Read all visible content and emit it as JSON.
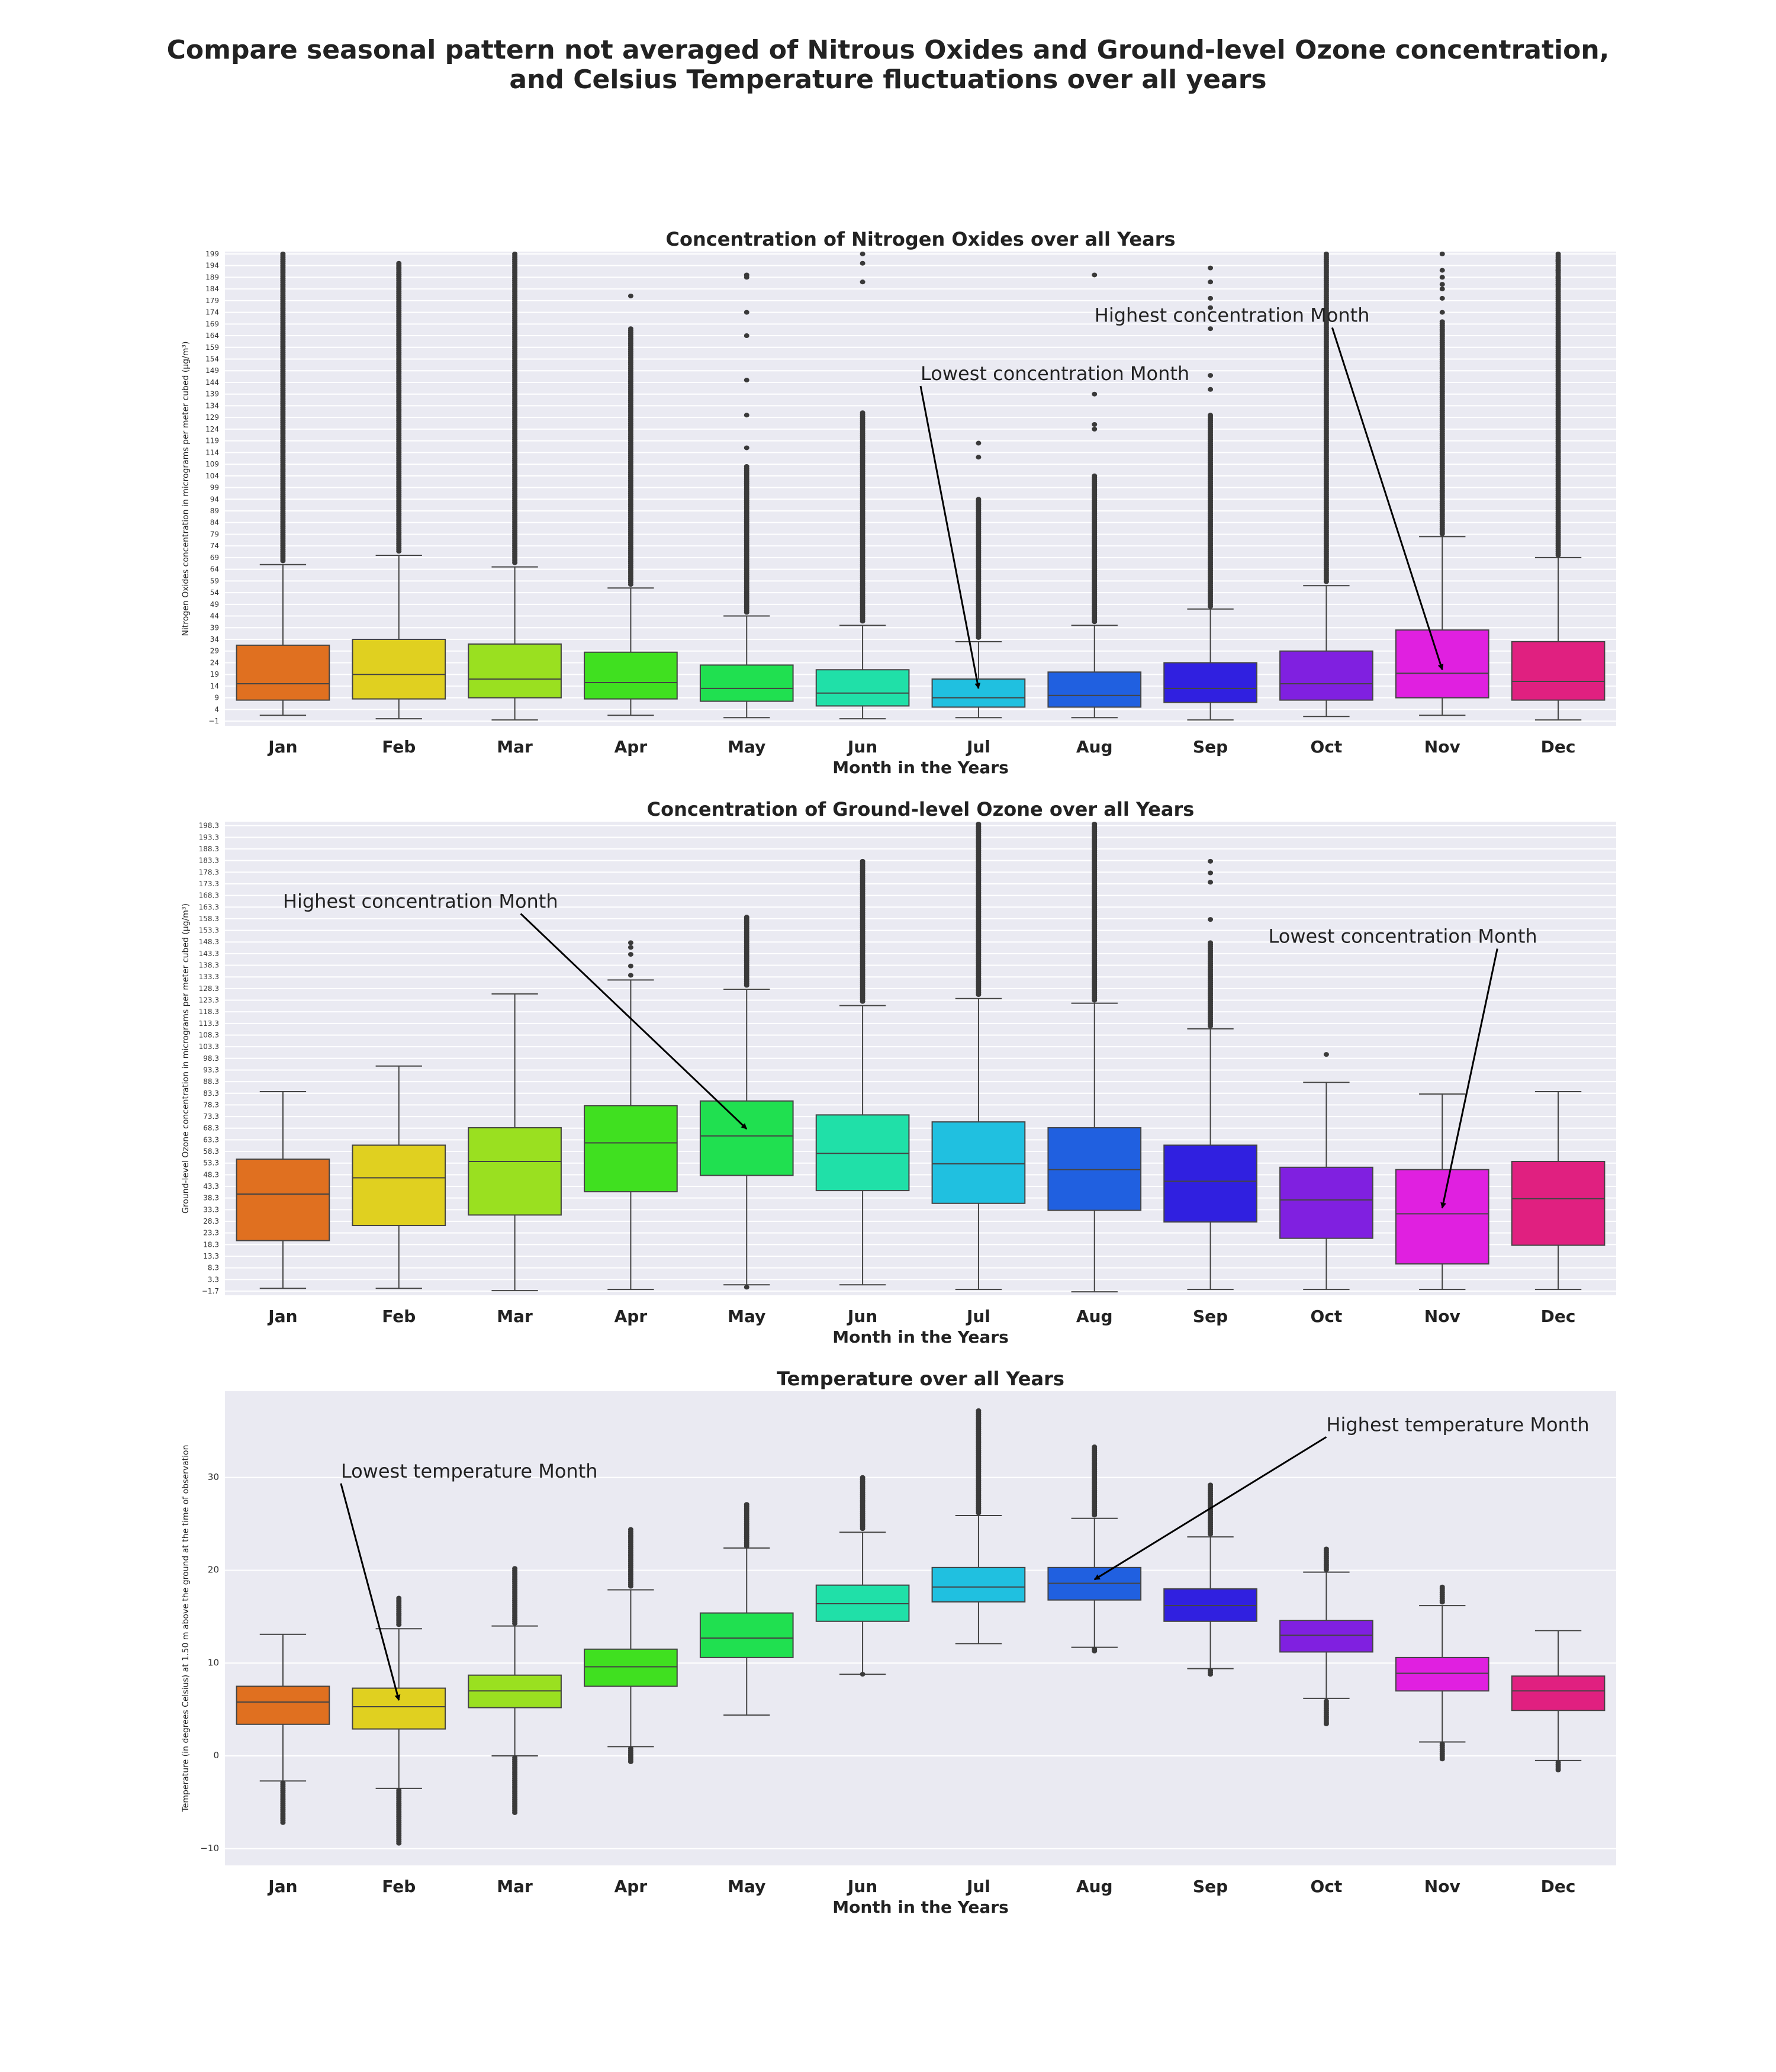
{
  "figure": {
    "title_line1": "Compare seasonal pattern not averaged of Nitrous Oxides and Ground-level Ozone concentration,",
    "title_line2": "and Celsius Temperature fluctuations over all years"
  },
  "colors": [
    "#e07020",
    "#e0d020",
    "#9ae020",
    "#40e020",
    "#20e050",
    "#20e0a8",
    "#20c0e0",
    "#2060e0",
    "#3020e0",
    "#8020e0",
    "#e020e0",
    "#e02080"
  ],
  "chart_data": [
    {
      "type": "box",
      "title": "Concentration of Nitrogen Oxides over all Years",
      "xlabel": "Month in the Years",
      "ylabel": "Nitrogen Oxides concentration in micrograms per meter cubed (µg/m³)",
      "categories": [
        "Jan",
        "Feb",
        "Mar",
        "Apr",
        "May",
        "Jun",
        "Jul",
        "Aug",
        "Sep",
        "Oct",
        "Nov",
        "Dec"
      ],
      "ylim": [
        -3,
        200
      ],
      "yticks": [
        -1,
        4,
        9,
        14,
        19,
        24,
        29,
        34,
        39,
        44,
        49,
        54,
        59,
        64,
        69,
        74,
        79,
        84,
        89,
        94,
        99,
        104,
        109,
        114,
        119,
        124,
        129,
        134,
        139,
        144,
        149,
        154,
        159,
        164,
        169,
        174,
        179,
        184,
        189,
        194,
        199
      ],
      "ytick_labels": [
        "−1",
        "4",
        "9",
        "14",
        "19",
        "24",
        "29",
        "34",
        "39",
        "44",
        "49",
        "54",
        "59",
        "64",
        "69",
        "74",
        "79",
        "84",
        "89",
        "94",
        "99",
        "104",
        "109",
        "114",
        "119",
        "124",
        "129",
        "134",
        "139",
        "144",
        "149",
        "154",
        "159",
        "164",
        "169",
        "174",
        "179",
        "184",
        "189",
        "194",
        "199"
      ],
      "boxes": [
        {
          "whislo": 1.5,
          "q1": 8,
          "med": 15,
          "q3": 31.5,
          "whishi": 66,
          "fliers_from": 67,
          "fliers_to": 200
        },
        {
          "whislo": 0,
          "q1": 8.5,
          "med": 19,
          "q3": 34,
          "whishi": 70,
          "fliers_from": 71,
          "fliers_to": 195
        },
        {
          "whislo": -0.5,
          "q1": 9,
          "med": 17,
          "q3": 32,
          "whishi": 65,
          "fliers_from": 66,
          "fliers_to": 200
        },
        {
          "whislo": 1.5,
          "q1": 8.5,
          "med": 15.5,
          "q3": 28.5,
          "whishi": 56,
          "fliers_from": 57,
          "fliers_to": 167
        },
        {
          "whislo": 0.5,
          "q1": 7.5,
          "med": 13,
          "q3": 23,
          "whishi": 44,
          "fliers_from": 45,
          "fliers_to": 108
        },
        {
          "whislo": 0,
          "q1": 5.5,
          "med": 11,
          "q3": 21,
          "whishi": 40,
          "fliers_from": 41,
          "fliers_to": 131
        },
        {
          "whislo": 0.5,
          "q1": 5,
          "med": 9,
          "q3": 17,
          "whishi": 33,
          "fliers_from": 34,
          "fliers_to": 94
        },
        {
          "whislo": 0.5,
          "q1": 5,
          "med": 10,
          "q3": 20,
          "whishi": 40,
          "fliers_from": 41,
          "fliers_to": 104
        },
        {
          "whislo": -0.5,
          "q1": 7,
          "med": 13,
          "q3": 24,
          "whishi": 47,
          "fliers_from": 48,
          "fliers_to": 130
        },
        {
          "whislo": 1,
          "q1": 8,
          "med": 15,
          "q3": 29,
          "whishi": 57,
          "fliers_from": 58,
          "fliers_to": 200
        },
        {
          "whislo": 1.5,
          "q1": 9,
          "med": 19.5,
          "q3": 38,
          "whishi": 78,
          "fliers_from": 79,
          "fliers_to": 170
        },
        {
          "whislo": -0.5,
          "q1": 8,
          "med": 16,
          "q3": 33,
          "whishi": 69,
          "fliers_from": 70,
          "fliers_to": 200
        }
      ],
      "extra_outliers": [
        {
          "cat": 1,
          "values": [
            190
          ]
        },
        {
          "cat": 3,
          "values": [
            181
          ]
        },
        {
          "cat": 4,
          "values": [
            116,
            130,
            145,
            164,
            174,
            189,
            190
          ]
        },
        {
          "cat": 5,
          "values": [
            187,
            195,
            199
          ]
        },
        {
          "cat": 6,
          "values": [
            112,
            118
          ]
        },
        {
          "cat": 7,
          "values": [
            124,
            126,
            139,
            190
          ]
        },
        {
          "cat": 8,
          "values": [
            141,
            147,
            167,
            176,
            180,
            187,
            193
          ]
        },
        {
          "cat": 10,
          "values": [
            174,
            180,
            184,
            186,
            189,
            192,
            199
          ]
        },
        {
          "cat": 11,
          "values": [
            186,
            189,
            192,
            196,
            200
          ]
        }
      ],
      "annotations": [
        {
          "text": "Lowest concentration Month",
          "cat": 6,
          "y": 13,
          "label_cat": 5.5,
          "label_y": 145
        },
        {
          "text": "Highest concentration Month",
          "cat": 10,
          "y": 21,
          "label_cat": 7,
          "label_y": 170
        }
      ]
    },
    {
      "type": "box",
      "title": "Concentration of Ground-level Ozone over all Years",
      "xlabel": "Month in the Years",
      "ylabel": "Ground-level Ozone concentration in micrograms per meter cubed (µg/m³)",
      "categories": [
        "Jan",
        "Feb",
        "Mar",
        "Apr",
        "May",
        "Jun",
        "Jul",
        "Aug",
        "Sep",
        "Oct",
        "Nov",
        "Dec"
      ],
      "ylim": [
        -3.5,
        200
      ],
      "yticks": [
        -1.7,
        3.3,
        8.3,
        13.3,
        18.3,
        23.3,
        28.3,
        33.3,
        38.3,
        43.3,
        48.3,
        53.3,
        58.3,
        63.3,
        68.3,
        73.3,
        78.3,
        83.3,
        88.3,
        93.3,
        98.3,
        103.3,
        108.3,
        113.3,
        118.3,
        123.3,
        128.3,
        133.3,
        138.3,
        143.3,
        148.3,
        153.3,
        158.3,
        163.3,
        168.3,
        173.3,
        178.3,
        183.3,
        188.3,
        193.3,
        198.3
      ],
      "ytick_labels": [
        "−1.7",
        "3.3",
        "8.3",
        "13.3",
        "18.3",
        "23.3",
        "28.3",
        "33.3",
        "38.3",
        "43.3",
        "48.3",
        "53.3",
        "58.3",
        "63.3",
        "68.3",
        "73.3",
        "78.3",
        "83.3",
        "88.3",
        "93.3",
        "98.3",
        "103.3",
        "108.3",
        "113.3",
        "118.3",
        "123.3",
        "128.3",
        "133.3",
        "138.3",
        "143.3",
        "148.3",
        "153.3",
        "158.3",
        "163.3",
        "168.3",
        "173.3",
        "178.3",
        "183.3",
        "188.3",
        "193.3",
        "198.3"
      ],
      "boxes": [
        {
          "whislo": -0.5,
          "q1": 20,
          "med": 40,
          "q3": 55,
          "whishi": 84,
          "fliers_from": null,
          "fliers_to": null
        },
        {
          "whislo": -0.5,
          "q1": 26.5,
          "med": 47,
          "q3": 61,
          "whishi": 95,
          "fliers_from": null,
          "fliers_to": null
        },
        {
          "whislo": -1.5,
          "q1": 31,
          "med": 54,
          "q3": 68.5,
          "whishi": 126,
          "fliers_from": null,
          "fliers_to": null
        },
        {
          "whislo": -1,
          "q1": 41,
          "med": 62,
          "q3": 78,
          "whishi": 132,
          "fliers_from": null,
          "fliers_to": null
        },
        {
          "whislo": 1,
          "q1": 48,
          "med": 65,
          "q3": 80,
          "whishi": 128,
          "fliers_from": 129,
          "fliers_to": 159
        },
        {
          "whislo": 1,
          "q1": 41.5,
          "med": 57.5,
          "q3": 74,
          "whishi": 121,
          "fliers_from": 122,
          "fliers_to": 183
        },
        {
          "whislo": -1,
          "q1": 36,
          "med": 53,
          "q3": 71,
          "whishi": 124,
          "fliers_from": 125,
          "fliers_to": 200
        },
        {
          "whislo": -2,
          "q1": 33,
          "med": 50.5,
          "q3": 68.5,
          "whishi": 122,
          "fliers_from": 123,
          "fliers_to": 200
        },
        {
          "whislo": -1,
          "q1": 28,
          "med": 45.5,
          "q3": 61,
          "whishi": 111,
          "fliers_from": 112,
          "fliers_to": 148
        },
        {
          "whislo": -1,
          "q1": 21,
          "med": 37.5,
          "q3": 51.5,
          "whishi": 88,
          "fliers_from": null,
          "fliers_to": null
        },
        {
          "whislo": -1,
          "q1": 10,
          "med": 31.5,
          "q3": 50.5,
          "whishi": 83,
          "fliers_from": null,
          "fliers_to": null
        },
        {
          "whislo": -1,
          "q1": 18,
          "med": 38,
          "q3": 54,
          "whishi": 84,
          "fliers_from": null,
          "fliers_to": null
        }
      ],
      "extra_outliers": [
        {
          "cat": 3,
          "values": [
            134,
            138,
            143,
            146,
            148
          ]
        },
        {
          "cat": 4,
          "values": [
            0
          ]
        },
        {
          "cat": 8,
          "values": [
            158,
            174,
            178,
            183
          ]
        },
        {
          "cat": 9,
          "values": [
            100
          ]
        }
      ],
      "annotations": [
        {
          "text": "Highest concentration Month",
          "cat": 4,
          "y": 68,
          "label_cat": 0,
          "label_y": 163
        },
        {
          "text": "Lowest concentration Month",
          "cat": 10,
          "y": 34,
          "label_cat": 8.5,
          "label_y": 148
        }
      ]
    },
    {
      "type": "box",
      "title": "Temperature over all Years",
      "xlabel": "Month in the Years",
      "ylabel": "Temperature (in degrees Celsius) at 1.50 m above the ground at the time of observation",
      "categories": [
        "Jan",
        "Feb",
        "Mar",
        "Apr",
        "May",
        "Jun",
        "Jul",
        "Aug",
        "Sep",
        "Oct",
        "Nov",
        "Dec"
      ],
      "ylim": [
        -11.8,
        39.3
      ],
      "yticks": [
        -10,
        0,
        10,
        20,
        30
      ],
      "ytick_labels": [
        "−10",
        "0",
        "10",
        "20",
        "30"
      ],
      "boxes": [
        {
          "whislo": -2.7,
          "q1": 3.4,
          "med": 5.8,
          "q3": 7.5,
          "whishi": 13.1,
          "fliers_lo_from": -7.3,
          "fliers_lo_to": -2.9
        },
        {
          "whislo": -3.5,
          "q1": 2.9,
          "med": 5.3,
          "q3": 7.3,
          "whishi": 13.7,
          "fliers_lo_from": -9.6,
          "fliers_lo_to": -3.7,
          "fliers_hi_from": 14,
          "fliers_hi_to": 17
        },
        {
          "whislo": 0,
          "q1": 5.2,
          "med": 7.0,
          "q3": 8.7,
          "whishi": 14.0,
          "fliers_lo_from": -6.2,
          "fliers_lo_to": -0.2,
          "fliers_hi_from": 14.2,
          "fliers_hi_to": 20.2
        },
        {
          "whislo": 1.0,
          "q1": 7.5,
          "med": 9.6,
          "q3": 11.5,
          "whishi": 17.9,
          "fliers_lo_from": -0.8,
          "fliers_lo_to": 0.8,
          "fliers_hi_from": 18.1,
          "fliers_hi_to": 24.4
        },
        {
          "whislo": 4.4,
          "q1": 10.6,
          "med": 12.7,
          "q3": 15.4,
          "whishi": 22.4,
          "fliers_hi_from": 22.6,
          "fliers_hi_to": 27.1
        },
        {
          "whislo": 8.8,
          "q1": 14.5,
          "med": 16.4,
          "q3": 18.4,
          "whishi": 24.1,
          "fliers_lo_from": 8.6,
          "fliers_lo_to": 8.8,
          "fliers_hi_from": 24.3,
          "fliers_hi_to": 30.0
        },
        {
          "whislo": 12.1,
          "q1": 16.6,
          "med": 18.2,
          "q3": 20.3,
          "whishi": 25.9,
          "fliers_hi_from": 26.1,
          "fliers_hi_to": 37.2
        },
        {
          "whislo": 11.7,
          "q1": 16.8,
          "med": 18.6,
          "q3": 20.3,
          "whishi": 25.6,
          "fliers_lo_from": 11.2,
          "fliers_lo_to": 11.5,
          "fliers_hi_from": 25.8,
          "fliers_hi_to": 33.3
        },
        {
          "whislo": 9.4,
          "q1": 14.5,
          "med": 16.2,
          "q3": 18.0,
          "whishi": 23.6,
          "fliers_lo_from": 8.6,
          "fliers_lo_to": 9.2,
          "fliers_hi_from": 23.8,
          "fliers_hi_to": 29.2
        },
        {
          "whislo": 6.2,
          "q1": 11.2,
          "med": 13.0,
          "q3": 14.6,
          "whishi": 19.8,
          "fliers_lo_from": 3.3,
          "fliers_lo_to": 5.9,
          "fliers_hi_from": 20.0,
          "fliers_hi_to": 22.3
        },
        {
          "whislo": 1.5,
          "q1": 7.0,
          "med": 8.9,
          "q3": 10.6,
          "whishi": 16.2,
          "fliers_lo_from": -0.4,
          "fliers_lo_to": 1.3,
          "fliers_hi_from": 16.4,
          "fliers_hi_to": 18.2
        },
        {
          "whislo": -0.5,
          "q1": 4.9,
          "med": 7.0,
          "q3": 8.6,
          "whishi": 13.5,
          "fliers_lo_from": -1.7,
          "fliers_lo_to": -0.7
        }
      ],
      "annotations": [
        {
          "text": "Lowest temperature Month",
          "cat": 1,
          "y": 6,
          "label_cat": 0.5,
          "label_y": 30
        },
        {
          "text": "Highest temperature Month",
          "cat": 7,
          "y": 19,
          "label_cat": 9,
          "label_y": 35
        }
      ]
    }
  ]
}
